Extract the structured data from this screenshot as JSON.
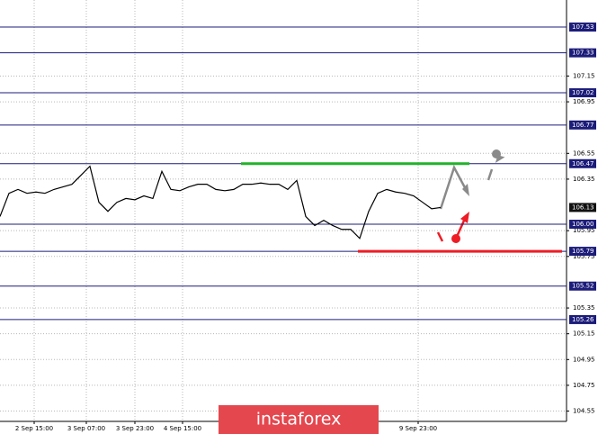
{
  "chart_data": {
    "type": "line",
    "values": [
      106.06,
      106.24,
      106.27,
      106.24,
      106.25,
      106.24,
      106.27,
      106.29,
      106.31,
      106.38,
      106.45,
      106.17,
      106.1,
      106.17,
      106.2,
      106.19,
      106.22,
      106.2,
      106.41,
      106.27,
      106.26,
      106.29,
      106.31,
      106.31,
      106.27,
      106.26,
      106.27,
      106.31,
      106.31,
      106.32,
      106.31,
      106.31,
      106.27,
      106.34,
      106.06,
      105.99,
      106.03,
      105.99,
      105.96,
      105.96,
      105.89,
      106.1,
      106.24,
      106.27,
      106.25,
      106.24,
      106.22,
      106.17,
      106.12,
      106.13
    ],
    "color": "#000000",
    "xlim": [
      0,
      63
    ],
    "xticks": [
      {
        "value": 3.8,
        "label": "2 Sep 15:00"
      },
      {
        "value": 9.6,
        "label": "3 Sep 07:00"
      },
      {
        "value": 15.0,
        "label": "3 Sep 23:00"
      },
      {
        "value": 20.3,
        "label": "4 Sep 15:00"
      },
      {
        "value": 46.5,
        "label": "9 Sep 23:00"
      }
    ],
    "ylim": [
      104.47,
      107.74
    ],
    "yticks": [
      107.15,
      106.95,
      106.55,
      106.35,
      105.95,
      105.75,
      105.35,
      105.15,
      104.95,
      104.75,
      104.55
    ],
    "grid": true,
    "level_lines": [
      107.53,
      107.33,
      107.02,
      106.77,
      106.47,
      {
        "value": 106,
        "label": "106.00"
      },
      105.79,
      105.52,
      105.26
    ],
    "current_price": 106.13,
    "highlight_lines": [
      {
        "level": 106.47,
        "color": "#22b22a"
      },
      {
        "level": 105.79,
        "color": "#ee1c25"
      }
    ],
    "watermark": "instaforex"
  }
}
